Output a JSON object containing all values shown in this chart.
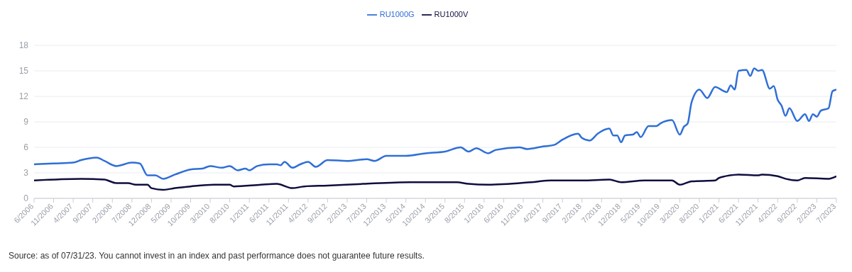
{
  "chart_data": {
    "type": "line",
    "legend": "top",
    "grid": "y",
    "marker": "none",
    "line_style": "solid",
    "xlim": [
      "2006-06",
      "2023-07"
    ],
    "ylim": [
      0,
      18
    ],
    "yticks": [
      0,
      3,
      6,
      9,
      12,
      15,
      18
    ],
    "xticks": [
      {
        "value": "2006-06",
        "label": "6/2006"
      },
      {
        "value": "2006-11",
        "label": "11/2006"
      },
      {
        "value": "2007-04",
        "label": "4/2007"
      },
      {
        "value": "2007-09",
        "label": "9/2007"
      },
      {
        "value": "2008-02",
        "label": "2/2008"
      },
      {
        "value": "2008-07",
        "label": "7/2008"
      },
      {
        "value": "2008-12",
        "label": "12/2008"
      },
      {
        "value": "2009-05",
        "label": "5/2009"
      },
      {
        "value": "2009-10",
        "label": "10/2009"
      },
      {
        "value": "2010-03",
        "label": "3/2010"
      },
      {
        "value": "2010-08",
        "label": "8/2010"
      },
      {
        "value": "2011-01",
        "label": "1/2011"
      },
      {
        "value": "2011-06",
        "label": "6/2011"
      },
      {
        "value": "2011-11",
        "label": "11/2011"
      },
      {
        "value": "2012-04",
        "label": "4/2012"
      },
      {
        "value": "2012-09",
        "label": "9/2012"
      },
      {
        "value": "2013-02",
        "label": "2/2013"
      },
      {
        "value": "2013-07",
        "label": "7/2013"
      },
      {
        "value": "2013-12",
        "label": "12/2013"
      },
      {
        "value": "2014-05",
        "label": "5/2014"
      },
      {
        "value": "2014-10",
        "label": "10/2014"
      },
      {
        "value": "2015-03",
        "label": "3/2015"
      },
      {
        "value": "2015-08",
        "label": "8/2015"
      },
      {
        "value": "2016-01",
        "label": "1/2016"
      },
      {
        "value": "2016-06",
        "label": "6/2016"
      },
      {
        "value": "2016-11",
        "label": "11/2016"
      },
      {
        "value": "2017-04",
        "label": "4/2017"
      },
      {
        "value": "2017-09",
        "label": "9/2017"
      },
      {
        "value": "2018-02",
        "label": "2/2018"
      },
      {
        "value": "2018-07",
        "label": "7/2018"
      },
      {
        "value": "2018-12",
        "label": "12/2018"
      },
      {
        "value": "2019-05",
        "label": "5/2019"
      },
      {
        "value": "2019-10",
        "label": "10/2019"
      },
      {
        "value": "2020-03",
        "label": "3/2020"
      },
      {
        "value": "2020-08",
        "label": "8/2020"
      },
      {
        "value": "2021-01",
        "label": "1/2021"
      },
      {
        "value": "2021-06",
        "label": "6/2021"
      },
      {
        "value": "2021-11",
        "label": "11/2021"
      },
      {
        "value": "2022-04",
        "label": "4/2022"
      },
      {
        "value": "2022-09",
        "label": "9/2022"
      },
      {
        "value": "2023-02",
        "label": "2/2023"
      },
      {
        "value": "2023-07",
        "label": "7/2023"
      }
    ],
    "series": [
      {
        "name": "RU1000G",
        "color": "#2f6fd6",
        "x": [
          "2006-06",
          "2006-11",
          "2007-04",
          "2007-06",
          "2007-10",
          "2007-12",
          "2008-03",
          "2008-07",
          "2008-09",
          "2008-11",
          "2009-01",
          "2009-03",
          "2009-06",
          "2009-10",
          "2010-01",
          "2010-03",
          "2010-06",
          "2010-08",
          "2010-10",
          "2010-12",
          "2011-01",
          "2011-03",
          "2011-06",
          "2011-08",
          "2011-09",
          "2011-10",
          "2011-12",
          "2012-02",
          "2012-04",
          "2012-06",
          "2012-09",
          "2013-02",
          "2013-07",
          "2013-09",
          "2013-12",
          "2014-05",
          "2014-10",
          "2015-03",
          "2015-07",
          "2015-09",
          "2015-11",
          "2016-02",
          "2016-04",
          "2016-10",
          "2016-12",
          "2017-04",
          "2017-07",
          "2017-09",
          "2018-01",
          "2018-02",
          "2018-04",
          "2018-06",
          "2018-09",
          "2018-10",
          "2018-11",
          "2018-12",
          "2019-01",
          "2019-03",
          "2019-04",
          "2019-05",
          "2019-07",
          "2019-09",
          "2019-10",
          "2020-01",
          "2020-03",
          "2020-04",
          "2020-05",
          "2020-06",
          "2020-08",
          "2020-10",
          "2020-12",
          "2021-03",
          "2021-04",
          "2021-05",
          "2021-06",
          "2021-08",
          "2021-09",
          "2021-10",
          "2021-11",
          "2021-12",
          "2022-02",
          "2022-03",
          "2022-04",
          "2022-05",
          "2022-06",
          "2022-07",
          "2022-09",
          "2022-11",
          "2022-12",
          "2023-01",
          "2023-02",
          "2023-03",
          "2023-05",
          "2023-06",
          "2023-07"
        ],
        "values": [
          4.0,
          4.1,
          4.2,
          4.5,
          4.8,
          4.4,
          3.8,
          4.2,
          4.1,
          2.7,
          2.7,
          2.3,
          2.8,
          3.4,
          3.5,
          3.8,
          3.6,
          3.8,
          3.3,
          3.5,
          3.3,
          3.8,
          4.0,
          4.0,
          3.9,
          4.3,
          3.6,
          4.0,
          4.3,
          3.7,
          4.5,
          4.4,
          4.6,
          4.4,
          5.0,
          5.0,
          5.3,
          5.5,
          6.0,
          5.5,
          5.9,
          5.3,
          5.7,
          6.0,
          5.8,
          6.1,
          6.3,
          6.9,
          7.6,
          7.1,
          6.8,
          7.6,
          8.2,
          7.4,
          7.4,
          6.6,
          7.4,
          7.5,
          7.8,
          7.2,
          8.5,
          8.5,
          8.8,
          9.2,
          7.5,
          8.4,
          8.8,
          11.3,
          12.8,
          11.8,
          13.1,
          12.5,
          13.3,
          12.8,
          15.0,
          15.1,
          14.4,
          15.3,
          15.0,
          15.1,
          12.9,
          13.2,
          11.6,
          10.9,
          9.7,
          10.6,
          9.1,
          9.9,
          9.1,
          9.9,
          9.6,
          10.3,
          10.6,
          12.6,
          12.8
        ]
      },
      {
        "name": "RU1000V",
        "color": "#0e0e3f",
        "x": [
          "2006-06",
          "2007-06",
          "2007-12",
          "2008-03",
          "2008-06",
          "2008-08",
          "2008-11",
          "2008-12",
          "2009-03",
          "2009-06",
          "2009-10",
          "2010-04",
          "2010-08",
          "2010-09",
          "2011-04",
          "2011-08",
          "2011-12",
          "2012-03",
          "2012-09",
          "2013-06",
          "2014-06",
          "2015-06",
          "2015-09",
          "2016-02",
          "2017-01",
          "2017-06",
          "2018-02",
          "2018-09",
          "2018-12",
          "2019-06",
          "2020-01",
          "2020-03",
          "2020-06",
          "2020-12",
          "2021-01",
          "2021-06",
          "2021-11",
          "2021-12",
          "2022-04",
          "2022-06",
          "2022-09",
          "2022-11",
          "2023-05",
          "2023-07"
        ],
        "values": [
          2.1,
          2.3,
          2.2,
          1.8,
          1.8,
          1.6,
          1.6,
          1.2,
          1.0,
          1.2,
          1.4,
          1.6,
          1.6,
          1.4,
          1.6,
          1.7,
          1.2,
          1.4,
          1.5,
          1.7,
          1.9,
          1.9,
          1.7,
          1.6,
          1.9,
          2.1,
          2.1,
          2.2,
          1.9,
          2.1,
          2.1,
          1.6,
          2.0,
          2.1,
          2.4,
          2.8,
          2.7,
          2.8,
          2.6,
          2.3,
          2.1,
          2.4,
          2.3,
          2.6
        ]
      }
    ],
    "annotations": [
      "Source: as of 07/31/23. You cannot invest in an index and past performance does not guarantee future results."
    ]
  }
}
